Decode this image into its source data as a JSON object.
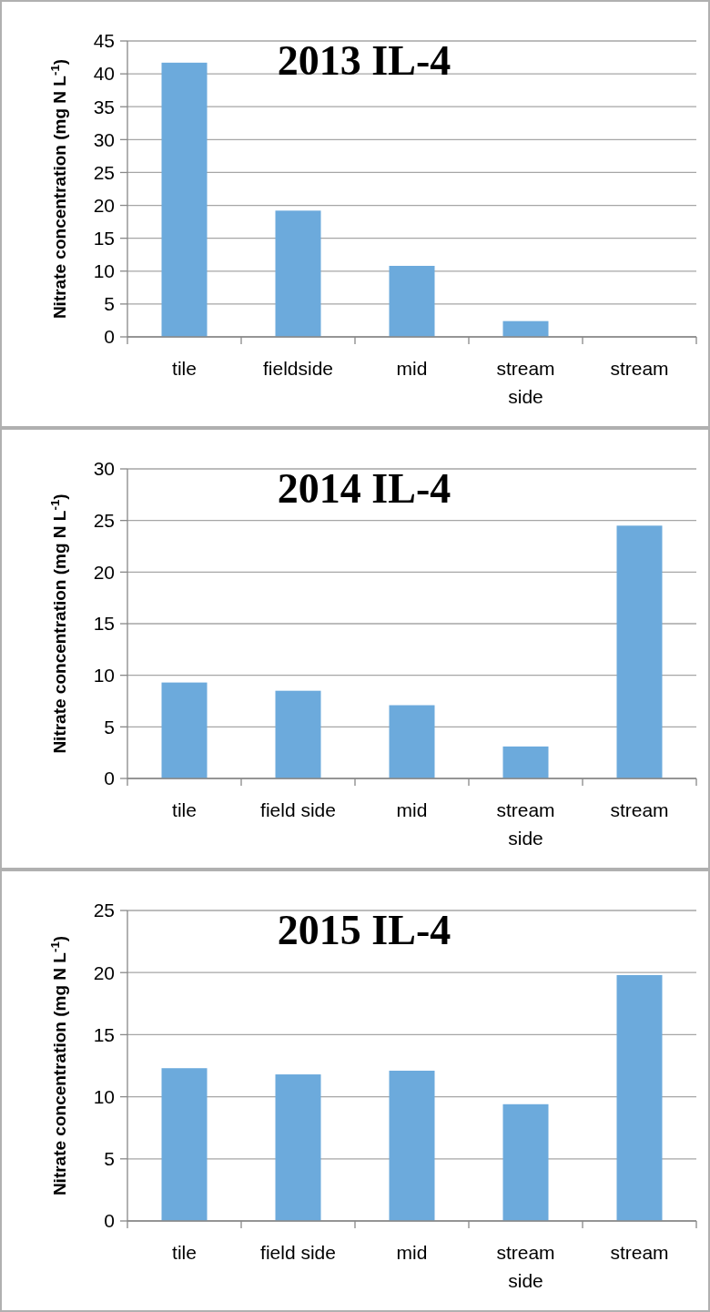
{
  "chart_data": [
    {
      "type": "bar",
      "title": "2013 IL-4",
      "ylabel": "Nitrate concentration (mg N L$^{-1}$)",
      "categories": [
        "tile",
        "fieldside",
        "mid",
        "stream side",
        "stream"
      ],
      "values": [
        41.7,
        19.2,
        10.8,
        2.4,
        null
      ],
      "color": "#6caadc",
      "ylim": [
        0,
        45
      ],
      "yticks": [
        0,
        5,
        10,
        15,
        20,
        25,
        30,
        35,
        40,
        45
      ],
      "grid": "y"
    },
    {
      "type": "bar",
      "title": "2014 IL-4",
      "ylabel": "Nitrate concentration (mg N L$^{-1}$)",
      "categories": [
        "tile",
        "field side",
        "mid",
        "stream side",
        "stream"
      ],
      "values": [
        9.3,
        8.5,
        7.1,
        3.1,
        24.5
      ],
      "color": "#6caadc",
      "ylim": [
        0,
        30
      ],
      "yticks": [
        0,
        5,
        10,
        15,
        20,
        25,
        30
      ],
      "grid": "y"
    },
    {
      "type": "bar",
      "title": "2015 IL-4",
      "ylabel": "Nitrate concentration (mg N L$^{-1}$)",
      "categories": [
        "tile",
        "field side",
        "mid",
        "stream side",
        "stream"
      ],
      "values": [
        12.3,
        11.8,
        12.1,
        9.4,
        19.8
      ],
      "color": "#6caadc",
      "ylim": [
        0,
        25
      ],
      "yticks": [
        0,
        5,
        10,
        15,
        20,
        25
      ],
      "grid": "y"
    }
  ]
}
